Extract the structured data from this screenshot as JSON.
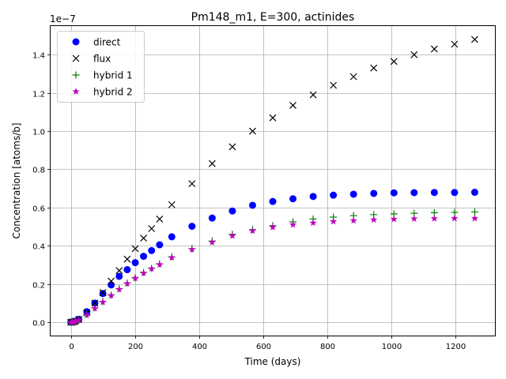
{
  "chart_data": {
    "type": "scatter",
    "title": "Pm148_m1, E=300, actinides",
    "xlabel": "Time (days)",
    "ylabel": "Concentration [atoms/b]",
    "y_offset_label": "1e−7",
    "xlim": [
      -63,
      1323
    ],
    "ylim": [
      -0.07,
      1.55
    ],
    "y_scale_factor": 1e-07,
    "grid": true,
    "legend_position": "upper-left",
    "x_ticks": [
      {
        "value": 0,
        "label": "0"
      },
      {
        "value": 200,
        "label": "200"
      },
      {
        "value": 400,
        "label": "400"
      },
      {
        "value": 600,
        "label": "600"
      },
      {
        "value": 800,
        "label": "800"
      },
      {
        "value": 1000,
        "label": "1000"
      },
      {
        "value": 1200,
        "label": "1200"
      }
    ],
    "y_ticks": [
      {
        "value": 0.0,
        "label": "0.0"
      },
      {
        "value": 0.2,
        "label": "0.2"
      },
      {
        "value": 0.4,
        "label": "0.4"
      },
      {
        "value": 0.6,
        "label": "0.6"
      },
      {
        "value": 0.8,
        "label": "0.8"
      },
      {
        "value": 1.0,
        "label": "1.0"
      },
      {
        "value": 1.2,
        "label": "1.2"
      },
      {
        "value": 1.4,
        "label": "1.4"
      }
    ],
    "x": [
      0,
      5,
      10,
      15,
      25,
      50,
      75,
      100,
      126,
      151,
      176,
      201,
      227,
      252,
      277,
      315,
      378,
      441,
      504,
      567,
      630,
      693,
      756,
      819,
      882,
      945,
      1008,
      1071,
      1134,
      1197,
      1260
    ],
    "series": [
      {
        "name": "direct",
        "marker": "circle",
        "color": "#0000ff",
        "values": [
          0.0,
          0.0,
          0.002,
          0.006,
          0.015,
          0.055,
          0.1,
          0.15,
          0.195,
          0.24,
          0.275,
          0.312,
          0.345,
          0.375,
          0.405,
          0.447,
          0.502,
          0.545,
          0.582,
          0.612,
          0.632,
          0.646,
          0.658,
          0.665,
          0.67,
          0.674,
          0.677,
          0.678,
          0.679,
          0.679,
          0.68
        ]
      },
      {
        "name": "flux",
        "marker": "x",
        "color": "#000000",
        "values": [
          0.0,
          0.0,
          0.002,
          0.006,
          0.015,
          0.05,
          0.1,
          0.155,
          0.215,
          0.27,
          0.33,
          0.385,
          0.44,
          0.49,
          0.54,
          0.615,
          0.725,
          0.83,
          0.918,
          1.0,
          1.07,
          1.135,
          1.19,
          1.24,
          1.285,
          1.33,
          1.365,
          1.4,
          1.43,
          1.455,
          1.48
        ]
      },
      {
        "name": "hybrid 1",
        "marker": "plus",
        "color": "#008000",
        "values": [
          0.0,
          0.0,
          0.001,
          0.004,
          0.012,
          0.04,
          0.075,
          0.108,
          0.142,
          0.175,
          0.205,
          0.232,
          0.26,
          0.282,
          0.305,
          0.342,
          0.385,
          0.425,
          0.46,
          0.485,
          0.505,
          0.525,
          0.54,
          0.55,
          0.558,
          0.563,
          0.567,
          0.57,
          0.573,
          0.575,
          0.577
        ]
      },
      {
        "name": "hybrid 2",
        "marker": "star",
        "color": "#bf00bf",
        "values": [
          0.0,
          0.0,
          0.001,
          0.004,
          0.01,
          0.038,
          0.072,
          0.105,
          0.14,
          0.172,
          0.202,
          0.23,
          0.257,
          0.28,
          0.302,
          0.338,
          0.38,
          0.418,
          0.452,
          0.478,
          0.497,
          0.51,
          0.52,
          0.527,
          0.532,
          0.536,
          0.539,
          0.541,
          0.542,
          0.543,
          0.543
        ]
      }
    ]
  }
}
